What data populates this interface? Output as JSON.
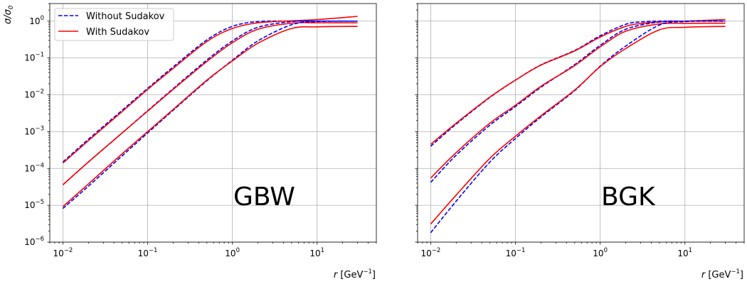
{
  "legend": {
    "items": [
      {
        "label": "Without Sudakov",
        "color": "#0000ff",
        "dash": "dashed"
      },
      {
        "label": "With Sudakov",
        "color": "#ff0000",
        "dash": "solid"
      }
    ],
    "placement": "upper-left of left panel"
  },
  "axes_text": {
    "xlabel_main": "r",
    "xlabel_unit_open": " [GeV",
    "xlabel_unit_exp": "−1",
    "xlabel_unit_close": "]",
    "ylabel_main": "σ/σ",
    "ylabel_sub": "0"
  },
  "chart_data": [
    {
      "type": "line",
      "title": "",
      "panel_label": "GBW",
      "xscale": "log",
      "yscale": "log",
      "xlim": [
        0.007,
        50
      ],
      "ylim": [
        1e-06,
        3
      ],
      "grid": true,
      "xticks": [
        0.01,
        0.1,
        1,
        10
      ],
      "yticks": [
        1e-06,
        1e-05,
        0.0001,
        0.001,
        0.01,
        0.1,
        1
      ],
      "xlabel": "r [GeV^-1]",
      "ylabel": "σ/σ0",
      "series": [
        {
          "name": "Without Sudakov",
          "color": "#0000ff",
          "dash": "dashed",
          "x": [
            0.01,
            0.02,
            0.05,
            0.1,
            0.2,
            0.5,
            1,
            2,
            5,
            10,
            30
          ],
          "y": [
            0.00015,
            0.00062,
            0.0038,
            0.015,
            0.057,
            0.31,
            0.72,
            0.97,
            1.0,
            1.0,
            1.0
          ]
        },
        {
          "name": "With Sudakov",
          "color": "#ff0000",
          "dash": "solid",
          "x": [
            0.01,
            0.02,
            0.05,
            0.1,
            0.2,
            0.5,
            1,
            2,
            5,
            10,
            30
          ],
          "y": [
            0.00014,
            0.00057,
            0.0035,
            0.014,
            0.052,
            0.28,
            0.63,
            0.9,
            1.02,
            1.1,
            1.35
          ]
        },
        {
          "name": "Without Sudakov",
          "color": "#0000ff",
          "dash": "dashed",
          "x": [
            0.01,
            0.02,
            0.05,
            0.1,
            0.2,
            0.5,
            1,
            2,
            5,
            10,
            30
          ],
          "y": [
            3.6e-05,
            0.00015,
            0.00092,
            0.0037,
            0.0147,
            0.088,
            0.29,
            0.68,
            0.97,
            1.0,
            1.0
          ]
        },
        {
          "name": "With Sudakov",
          "color": "#ff0000",
          "dash": "solid",
          "x": [
            0.01,
            0.02,
            0.05,
            0.1,
            0.2,
            0.5,
            1,
            2,
            5,
            10,
            30
          ],
          "y": [
            3.6e-05,
            0.00015,
            0.00092,
            0.0036,
            0.014,
            0.08,
            0.26,
            0.6,
            0.88,
            0.9,
            0.9
          ]
        },
        {
          "name": "Without Sudakov",
          "color": "#0000ff",
          "dash": "dashed",
          "x": [
            0.01,
            0.02,
            0.05,
            0.1,
            0.2,
            0.5,
            1,
            2,
            5,
            10,
            30
          ],
          "y": [
            8.2e-06,
            3.3e-05,
            0.00022,
            0.00092,
            0.0038,
            0.024,
            0.087,
            0.29,
            0.8,
            0.97,
            1.0
          ]
        },
        {
          "name": "With Sudakov",
          "color": "#ff0000",
          "dash": "solid",
          "x": [
            0.01,
            0.02,
            0.05,
            0.1,
            0.2,
            0.5,
            1,
            2,
            5,
            10,
            30
          ],
          "y": [
            9.2e-06,
            3.8e-05,
            0.00025,
            0.001,
            0.004,
            0.025,
            0.083,
            0.25,
            0.63,
            0.7,
            0.72
          ]
        }
      ]
    },
    {
      "type": "line",
      "title": "",
      "panel_label": "BGK",
      "xscale": "log",
      "yscale": "log",
      "xlim": [
        0.007,
        50
      ],
      "ylim": [
        1e-06,
        3
      ],
      "grid": true,
      "xticks": [
        0.01,
        0.1,
        1,
        10
      ],
      "yticks": [
        1e-06,
        1e-05,
        0.0001,
        0.001,
        0.01,
        0.1,
        1
      ],
      "xlabel": "r [GeV^-1]",
      "ylabel": "",
      "series": [
        {
          "name": "Without Sudakov",
          "color": "#0000ff",
          "dash": "dashed",
          "x": [
            0.01,
            0.02,
            0.05,
            0.1,
            0.2,
            0.5,
            1,
            2,
            3,
            5,
            10,
            30
          ],
          "y": [
            0.0004,
            0.0016,
            0.0085,
            0.025,
            0.065,
            0.16,
            0.4,
            0.82,
            0.95,
            1.0,
            1.0,
            1.0
          ]
        },
        {
          "name": "With Sudakov",
          "color": "#ff0000",
          "dash": "solid",
          "x": [
            0.01,
            0.02,
            0.05,
            0.1,
            0.2,
            0.5,
            1,
            2,
            3,
            5,
            10,
            30
          ],
          "y": [
            0.00045,
            0.0017,
            0.0087,
            0.025,
            0.064,
            0.155,
            0.37,
            0.72,
            0.86,
            0.96,
            1.0,
            1.1
          ]
        },
        {
          "name": "Without Sudakov",
          "color": "#0000ff",
          "dash": "dashed",
          "x": [
            0.01,
            0.02,
            0.05,
            0.1,
            0.2,
            0.5,
            1,
            2,
            5,
            10,
            30
          ],
          "y": [
            4.2e-05,
            0.00023,
            0.0015,
            0.0048,
            0.016,
            0.066,
            0.22,
            0.6,
            0.95,
            1.0,
            1.0
          ]
        },
        {
          "name": "With Sudakov",
          "color": "#ff0000",
          "dash": "solid",
          "x": [
            0.01,
            0.02,
            0.05,
            0.1,
            0.2,
            0.5,
            1,
            2,
            5,
            10,
            30
          ],
          "y": [
            5.5e-05,
            0.00027,
            0.0017,
            0.0052,
            0.017,
            0.062,
            0.2,
            0.53,
            0.84,
            0.87,
            0.88
          ]
        },
        {
          "name": "Without Sudakov",
          "color": "#0000ff",
          "dash": "dashed",
          "x": [
            0.01,
            0.02,
            0.05,
            0.1,
            0.2,
            0.5,
            1,
            2,
            5,
            10,
            30
          ],
          "y": [
            1.8e-06,
            1.3e-05,
            0.00015,
            0.00065,
            0.0025,
            0.013,
            0.06,
            0.21,
            0.78,
            0.97,
            1.0
          ]
        },
        {
          "name": "With Sudakov",
          "color": "#ff0000",
          "dash": "solid",
          "x": [
            0.01,
            0.02,
            0.05,
            0.1,
            0.2,
            0.5,
            1,
            2,
            5,
            10,
            30
          ],
          "y": [
            3.1e-06,
            1.9e-05,
            0.00019,
            0.00075,
            0.0027,
            0.0135,
            0.058,
            0.18,
            0.58,
            0.68,
            0.72
          ]
        }
      ]
    }
  ]
}
